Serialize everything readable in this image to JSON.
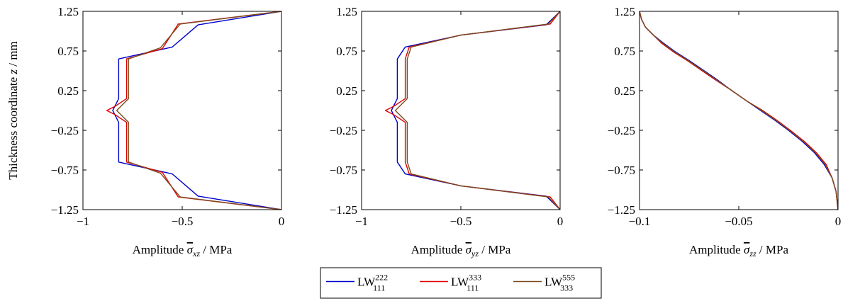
{
  "chart_data": [
    {
      "type": "line",
      "xlabel_text": "Amplitude ",
      "xlabel_symbol": "σ",
      "xlabel_sub": "xz",
      "xlabel_unit": " / MPa",
      "ylabel_text": "Thickness coordinate ",
      "ylabel_symbol": "z",
      "ylabel_unit": " / mm",
      "xlim": [
        -1,
        0
      ],
      "ylim": [
        -1.25,
        1.25
      ],
      "x_ticks": [
        -1,
        -0.5,
        0
      ],
      "x_tick_labels": [
        "−1",
        "−0.5",
        "0"
      ],
      "y_ticks": [
        1.25,
        0.75,
        0.25,
        -0.25,
        -0.75,
        -1.25
      ],
      "y_tick_labels": [
        "1.25",
        "0.75",
        "0.25",
        "−0.25",
        "−0.75",
        "−1.25"
      ],
      "grid": false,
      "series": [
        {
          "key": "lw222",
          "x": [
            0,
            -0.42,
            -0.55,
            -0.82,
            -0.82,
            -0.84,
            -0.85,
            -0.84,
            -0.82,
            -0.82,
            -0.55,
            -0.42,
            0
          ],
          "y": [
            1.25,
            1.08,
            0.8,
            0.65,
            0.15,
            0.05,
            0,
            -0.05,
            -0.15,
            -0.65,
            -0.8,
            -1.08,
            -1.25
          ]
        },
        {
          "key": "lw333",
          "x": [
            0,
            -0.52,
            -0.6,
            -0.78,
            -0.78,
            -0.84,
            -0.88,
            -0.84,
            -0.78,
            -0.78,
            -0.6,
            -0.52,
            0
          ],
          "y": [
            1.25,
            1.09,
            0.78,
            0.65,
            0.15,
            0.05,
            0,
            -0.05,
            -0.15,
            -0.65,
            -0.78,
            -1.09,
            -1.25
          ]
        },
        {
          "key": "lw555",
          "x": [
            0,
            -0.51,
            -0.61,
            -0.77,
            -0.77,
            -0.81,
            -0.83,
            -0.81,
            -0.77,
            -0.77,
            -0.61,
            -0.51,
            0
          ],
          "y": [
            1.25,
            1.09,
            0.79,
            0.65,
            0.15,
            0.05,
            0,
            -0.05,
            -0.15,
            -0.65,
            -0.79,
            -1.09,
            -1.25
          ]
        }
      ]
    },
    {
      "type": "line",
      "xlabel_text": "Amplitude ",
      "xlabel_symbol": "σ",
      "xlabel_sub": "yz",
      "xlabel_unit": " / MPa",
      "xlim": [
        -1,
        0
      ],
      "ylim": [
        -1.25,
        1.25
      ],
      "x_ticks": [
        -1,
        -0.5,
        0
      ],
      "x_tick_labels": [
        "−1",
        "−0.5",
        "0"
      ],
      "y_ticks": [
        1.25,
        0.75,
        0.25,
        -0.25,
        -0.75,
        -1.25
      ],
      "y_tick_labels": [
        "1.25",
        "0.75",
        "0.25",
        "−0.25",
        "−0.75",
        "−1.25"
      ],
      "grid": false,
      "series": [
        {
          "key": "lw222",
          "x": [
            0,
            -0.07,
            -0.5,
            -0.78,
            -0.82,
            -0.82,
            -0.84,
            -0.85,
            -0.84,
            -0.82,
            -0.82,
            -0.78,
            -0.5,
            -0.07,
            0
          ],
          "y": [
            1.25,
            1.08,
            0.95,
            0.8,
            0.65,
            0.15,
            0.05,
            0,
            -0.05,
            -0.15,
            -0.65,
            -0.8,
            -0.95,
            -1.08,
            -1.25
          ]
        },
        {
          "key": "lw333",
          "x": [
            0,
            -0.05,
            -0.5,
            -0.76,
            -0.78,
            -0.78,
            -0.84,
            -0.88,
            -0.84,
            -0.78,
            -0.78,
            -0.76,
            -0.5,
            -0.05,
            0
          ],
          "y": [
            1.25,
            1.09,
            0.95,
            0.8,
            0.65,
            0.15,
            0.05,
            0,
            -0.05,
            -0.15,
            -0.65,
            -0.8,
            -0.95,
            -1.09,
            -1.25
          ]
        },
        {
          "key": "lw555",
          "x": [
            0,
            -0.06,
            -0.5,
            -0.75,
            -0.77,
            -0.77,
            -0.81,
            -0.83,
            -0.81,
            -0.77,
            -0.77,
            -0.75,
            -0.5,
            -0.06,
            0
          ],
          "y": [
            1.25,
            1.09,
            0.95,
            0.8,
            0.65,
            0.15,
            0.05,
            0,
            -0.05,
            -0.15,
            -0.65,
            -0.8,
            -0.95,
            -1.09,
            -1.25
          ]
        }
      ]
    },
    {
      "type": "line",
      "xlabel_text": "Amplitude ",
      "xlabel_symbol": "σ",
      "xlabel_sub": "zz",
      "xlabel_unit": " / MPa",
      "xlim": [
        -0.1,
        0
      ],
      "ylim": [
        -1.25,
        1.25
      ],
      "x_ticks": [
        -0.1,
        -0.05,
        0
      ],
      "x_tick_labels": [
        "−0.1",
        "−0.05",
        "0"
      ],
      "y_ticks": [
        1.25,
        0.75,
        0.25,
        -0.25,
        -0.75,
        -1.25
      ],
      "y_tick_labels": [
        "1.25",
        "0.75",
        "0.25",
        "−0.25",
        "−0.75",
        "−1.25"
      ],
      "grid": false,
      "series": [
        {
          "key": "lw222",
          "x": [
            -0.1,
            -0.099,
            -0.097,
            -0.093,
            -0.088,
            -0.082,
            -0.075,
            -0.068,
            -0.061,
            -0.054,
            -0.046,
            -0.039,
            -0.032,
            -0.025,
            -0.018,
            -0.012,
            -0.007,
            -0.003,
            -0.001,
            0
          ],
          "y": [
            1.25,
            1.15,
            1.05,
            0.95,
            0.85,
            0.74,
            0.63,
            0.51,
            0.39,
            0.26,
            0.12,
            0.0,
            -0.12,
            -0.25,
            -0.39,
            -0.53,
            -0.68,
            -0.85,
            -1.02,
            -1.25
          ]
        },
        {
          "key": "lw333",
          "x": [
            -0.1,
            -0.099,
            -0.097,
            -0.093,
            -0.089,
            -0.083,
            -0.076,
            -0.069,
            -0.062,
            -0.054,
            -0.046,
            -0.038,
            -0.031,
            -0.024,
            -0.017,
            -0.011,
            -0.006,
            -0.003,
            -0.001,
            0
          ],
          "y": [
            1.25,
            1.15,
            1.05,
            0.95,
            0.85,
            0.74,
            0.63,
            0.51,
            0.39,
            0.26,
            0.12,
            0.0,
            -0.12,
            -0.25,
            -0.39,
            -0.53,
            -0.68,
            -0.85,
            -1.02,
            -1.25
          ]
        },
        {
          "key": "lw555",
          "x": [
            -0.1,
            -0.099,
            -0.097,
            -0.093,
            -0.0885,
            -0.0825,
            -0.0755,
            -0.0685,
            -0.0615,
            -0.054,
            -0.046,
            -0.0385,
            -0.0315,
            -0.0245,
            -0.0175,
            -0.0115,
            -0.0065,
            -0.003,
            -0.001,
            0
          ],
          "y": [
            1.25,
            1.15,
            1.05,
            0.95,
            0.85,
            0.74,
            0.63,
            0.51,
            0.39,
            0.26,
            0.12,
            0.0,
            -0.12,
            -0.25,
            -0.39,
            -0.53,
            -0.68,
            -0.85,
            -1.02,
            -1.25
          ]
        }
      ]
    }
  ],
  "legend": {
    "placement": "bottom-center",
    "entries": [
      {
        "key": "lw222",
        "base": "LW",
        "sup": "222",
        "sub": "111",
        "color": "#0000cc"
      },
      {
        "key": "lw333",
        "base": "LW",
        "sup": "333",
        "sub": "111",
        "color": "#e00000"
      },
      {
        "key": "lw555",
        "base": "LW",
        "sup": "555",
        "sub": "333",
        "color": "#7a4a1e"
      }
    ]
  },
  "colors": {
    "lw222": "#0000cc",
    "lw333": "#e00000",
    "lw555": "#7a4a1e",
    "axis": "#000000"
  }
}
